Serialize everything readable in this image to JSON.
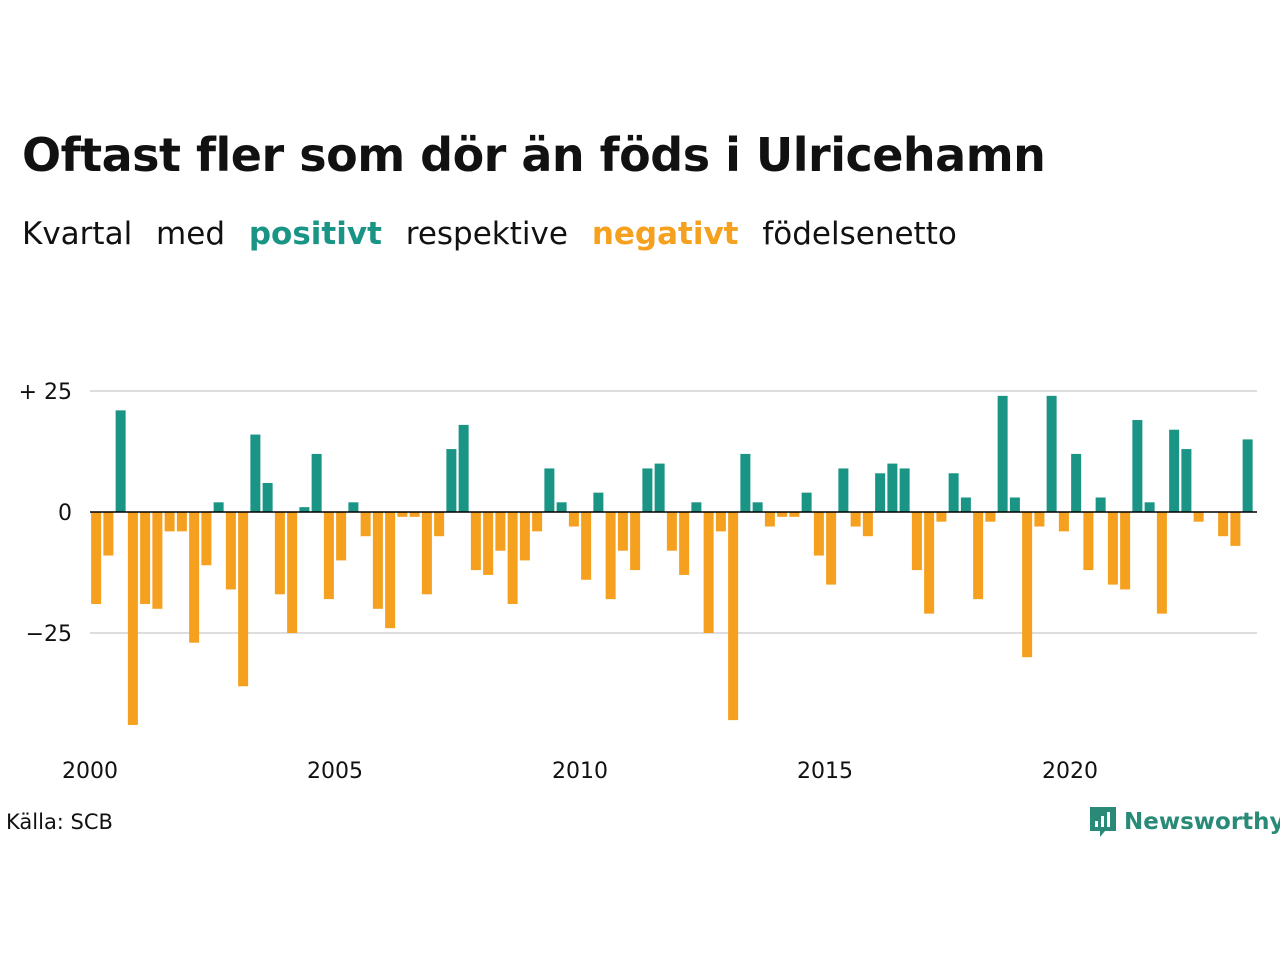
{
  "header": {
    "title": "Oftast fler som dör än föds i Ulricehamn",
    "subtitle_parts": {
      "p1": "Kvartal",
      "p2": "med",
      "positive": "positivt",
      "p3": "respektive",
      "negative": "negativt",
      "p4": "födelsenetto"
    }
  },
  "footer": {
    "source": "Källa: SCB",
    "brand": "Newsworthy"
  },
  "colors": {
    "positive": "#1a9485",
    "negative": "#f5a01e",
    "grid": "#dddddd",
    "axis": "#000000",
    "brand": "#2a8a78"
  },
  "chart_data": {
    "type": "bar",
    "title": "Oftast fler som dör än föds i Ulricehamn",
    "xlabel": "",
    "ylabel": "",
    "x_start": 2000,
    "periods_per_year": 4,
    "ylim": [
      -45,
      25
    ],
    "yticks": [
      {
        "value": 25,
        "label": "+ 25"
      },
      {
        "value": 0,
        "label": "0"
      },
      {
        "value": -25,
        "label": "−25"
      }
    ],
    "xticks": [
      {
        "value": 2000,
        "label": "2000"
      },
      {
        "value": 2005,
        "label": "2005"
      },
      {
        "value": 2010,
        "label": "2010"
      },
      {
        "value": 2015,
        "label": "2015"
      },
      {
        "value": 2020,
        "label": "2020"
      }
    ],
    "grid": true,
    "values": [
      -19,
      -9,
      21,
      -44,
      -19,
      -20,
      -4,
      -4,
      -27,
      -11,
      2,
      -16,
      -36,
      16,
      6,
      -17,
      -25,
      1,
      12,
      -18,
      -10,
      2,
      -5,
      -20,
      -24,
      -1,
      -1,
      -17,
      -5,
      13,
      18,
      -12,
      -13,
      -8,
      -19,
      -10,
      -4,
      9,
      2,
      -3,
      -14,
      4,
      -18,
      -8,
      -12,
      9,
      10,
      -8,
      -13,
      2,
      -25,
      -4,
      -43,
      12,
      2,
      -3,
      -1,
      -1,
      4,
      -9,
      -15,
      9,
      -3,
      -5,
      8,
      10,
      9,
      -12,
      -21,
      -2,
      8,
      3,
      -18,
      -2,
      24,
      3,
      -30,
      -3,
      24,
      -4,
      12,
      -12,
      3,
      -15,
      -16,
      19,
      2,
      -21,
      17,
      13,
      -2,
      0,
      -5,
      -7,
      15
    ]
  }
}
